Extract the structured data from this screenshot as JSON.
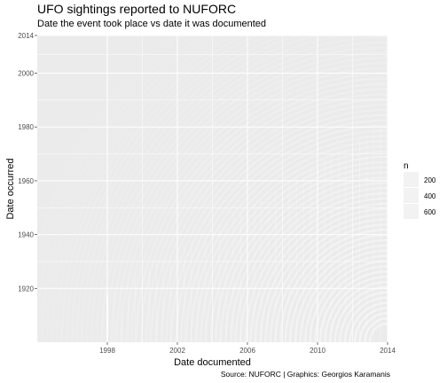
{
  "chart_data": {
    "type": "heatmap",
    "title": "UFO sightings reported to NUFORC",
    "subtitle": "Date the event took place vs date it was documented",
    "xlabel": "Date documented",
    "ylabel": "Date occurred",
    "caption": "Source: NUFORC | Graphics: Georgios Karamanis",
    "xlim": [
      1994,
      2014
    ],
    "ylim": [
      1900,
      2014
    ],
    "x_ticks": [
      1998,
      2002,
      2006,
      2010,
      2014
    ],
    "y_ticks": [
      1920,
      1940,
      1960,
      1980,
      2000,
      2014
    ],
    "legend": {
      "title": "n",
      "entries": [
        200,
        400,
        600
      ],
      "position": "right"
    },
    "grid": true,
    "colors": {
      "panel": "#ebebeb",
      "grid": "#ffffff",
      "data": "#ffffff"
    }
  }
}
